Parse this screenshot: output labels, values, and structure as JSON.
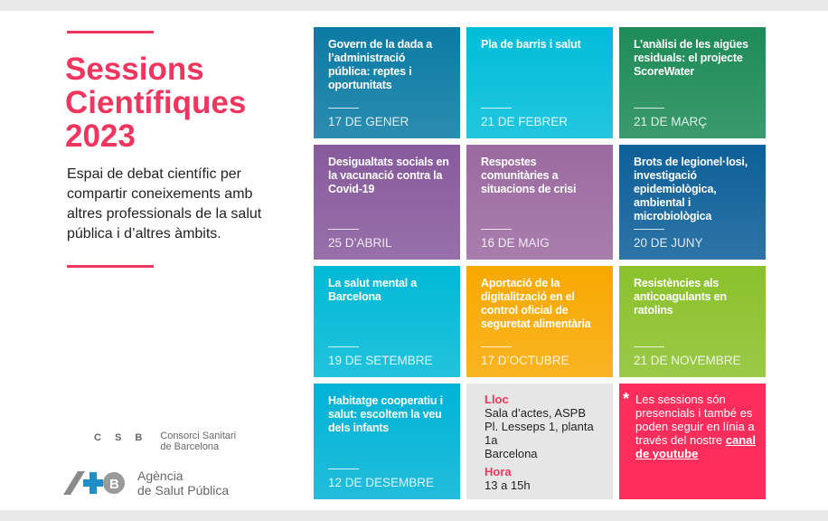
{
  "header": {
    "title_lines": [
      "Sessions",
      "Científiques",
      "2023"
    ],
    "description": "Espai de debat científic per compartir coneixements amb altres professionals de la salut pública i d’altres àmbits."
  },
  "logos": {
    "csb_mark": "C S B",
    "csb_name_1": "Consorci Sanitari",
    "csb_name_2": "de Barcelona",
    "aspb_mark": "+B",
    "aspb_name_1": "Agència",
    "aspb_name_2": "de Salut Pública"
  },
  "sessions": [
    {
      "title": "Govern de la dada a l’administració pública: reptes i oportunitats",
      "date": "17 DE GENER",
      "color": "#0b7ba4"
    },
    {
      "title": "Pla de barris i salut",
      "date": "21 DE FEBRER",
      "color": "#00bdd9"
    },
    {
      "title": "L’anàlisi de les aigües residuals: el projecte ScoreWater",
      "date": "21 DE MARÇ",
      "color": "#1d8b57"
    },
    {
      "title": "Desigualtats socials en la vacunació contra la Covid-19",
      "date": "25 D’ABRIL",
      "color": "#875a9c"
    },
    {
      "title": "Respostes comunitàries a situacions de crisi",
      "date": "16 DE MAIG",
      "color": "#9b6aa0"
    },
    {
      "title": "Brots de legionel·losi, investigació epidemiològica, ambiental i microbiològica",
      "date": "20 DE JUNY",
      "color": "#0d5f99"
    },
    {
      "title": "La salut mental a Barcelona",
      "date": "19 DE SETEMBRE",
      "color": "#00b9d6"
    },
    {
      "title": "Aportació de la digitalització en el control oficial de seguretat alimentària",
      "date": "17 D’OCTUBRE",
      "color": "#f8a900"
    },
    {
      "title": "Resistències als anticoagulants en ratolins",
      "date": "21 DE NOVEMBRE",
      "color": "#8bc12b"
    },
    {
      "title": "Habitatge cooperatiu i salut: escoltem la veu dels infants",
      "date": "12 DE DESEMBRE",
      "color": "#00b3d6"
    }
  ],
  "info": {
    "place_label": "Lloc",
    "place_1": "Sala d’actes, ASPB",
    "place_2": "Pl. Lesseps 1, planta 1a",
    "place_3": "Barcelona",
    "time_label": "Hora",
    "time": "13 a 15h"
  },
  "note": {
    "star": "*",
    "text": "Les sessions són presencials i també es poden seguir en línia a través del nostre",
    "link": "canal de youtube"
  }
}
